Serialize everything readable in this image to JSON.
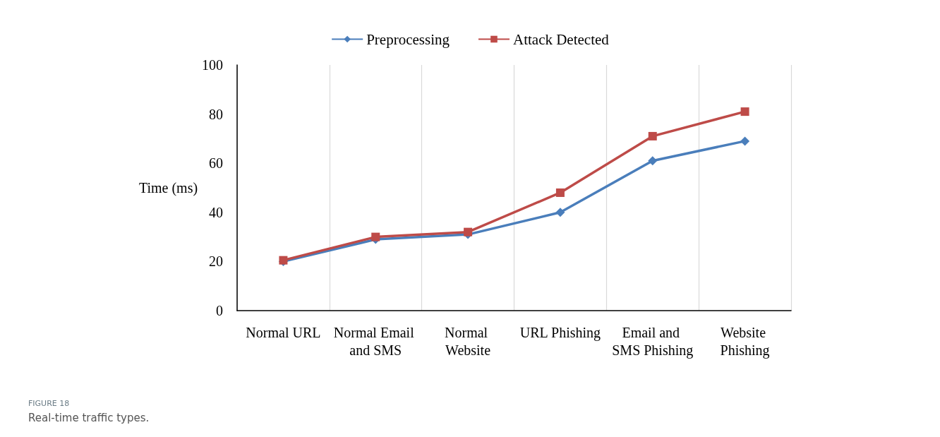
{
  "chart_data": {
    "type": "line",
    "categories": [
      "Normal URL",
      "Normal Email and SMS",
      "Normal Website",
      "URL Phishing",
      "Email and SMS Phishing",
      "Website Phishing"
    ],
    "series": [
      {
        "name": "Preprocessing",
        "color": "#4a7ebb",
        "marker": "diamond",
        "values": [
          20,
          29,
          31,
          40,
          61,
          69
        ]
      },
      {
        "name": "Attack Detected",
        "color": "#be4b48",
        "marker": "square",
        "values": [
          20.5,
          30,
          32,
          48,
          71,
          81
        ]
      }
    ],
    "ylabel": "Time (ms)",
    "ylim": [
      0,
      100
    ],
    "yticks": [
      0,
      20,
      40,
      60,
      80,
      100
    ],
    "grid": "x",
    "legend": "top",
    "annotations": [
      "FIGURE 18",
      "Real-time traffic types."
    ]
  }
}
